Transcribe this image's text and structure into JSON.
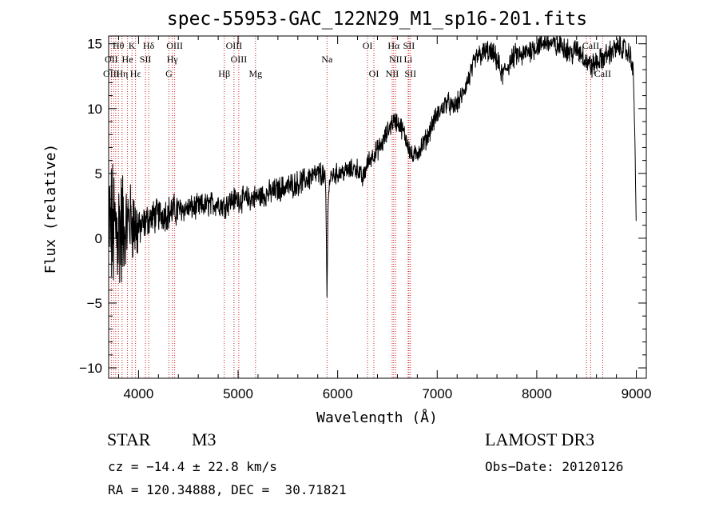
{
  "chart_data": {
    "type": "line",
    "title": "spec-55953-GAC_122N29_M1_sp16-201.fits",
    "xlabel": "Wavelength (Å)",
    "ylabel": "Flux (relative)",
    "xlim": [
      3700,
      9100
    ],
    "ylim": [
      -10.8,
      15.6
    ],
    "x_ticks": [
      4000,
      5000,
      6000,
      7000,
      8000,
      9000
    ],
    "y_ticks": [
      -10,
      -5,
      0,
      5,
      10,
      15
    ],
    "x_tick_labels": [
      "4000",
      "5000",
      "6000",
      "7000",
      "8000",
      "9000"
    ],
    "y_tick_labels": [
      "−10",
      "−5",
      "0",
      "5",
      "10",
      "15"
    ],
    "spectrum_anchor_points": {
      "name": "flux",
      "x": [
        3700,
        3750,
        3800,
        3850,
        3900,
        3950,
        4000,
        4100,
        4200,
        4300,
        4400,
        4500,
        4600,
        4700,
        4800,
        4860,
        4950,
        5050,
        5150,
        5250,
        5350,
        5450,
        5550,
        5650,
        5750,
        5850,
        5880,
        5893,
        5905,
        5930,
        6000,
        6100,
        6200,
        6250,
        6300,
        6350,
        6400,
        6450,
        6500,
        6550,
        6600,
        6650,
        6700,
        6750,
        6800,
        6850,
        6900,
        6950,
        7000,
        7050,
        7100,
        7150,
        7200,
        7250,
        7300,
        7350,
        7400,
        7450,
        7500,
        7550,
        7600,
        7650,
        7700,
        7750,
        7800,
        7850,
        7900,
        7950,
        8000,
        8050,
        8100,
        8150,
        8200,
        8250,
        8300,
        8350,
        8400,
        8450,
        8500,
        8550,
        8600,
        8650,
        8700,
        8750,
        8800,
        8850,
        8900,
        8950,
        8970,
        8985,
        9000
      ],
      "values": [
        1.0,
        0.5,
        0.8,
        0.3,
        1.5,
        1.2,
        0.6,
        1.5,
        1.8,
        2.0,
        2.2,
        2.3,
        2.4,
        2.6,
        2.7,
        2.5,
        3.0,
        3.0,
        3.1,
        3.3,
        3.6,
        3.9,
        4.1,
        4.4,
        4.8,
        5.0,
        4.0,
        -4.5,
        3.5,
        4.8,
        5.0,
        5.2,
        5.4,
        4.5,
        5.8,
        6.4,
        6.8,
        7.3,
        8.2,
        9.0,
        9.0,
        8.4,
        7.4,
        6.2,
        6.6,
        7.2,
        7.8,
        8.8,
        9.5,
        10.0,
        10.6,
        10.0,
        10.4,
        11.0,
        12.0,
        13.0,
        14.0,
        14.2,
        14.4,
        14.2,
        13.8,
        12.5,
        13.2,
        13.8,
        14.2,
        14.0,
        14.4,
        14.6,
        14.8,
        15.0,
        15.2,
        15.0,
        14.7,
        15.0,
        14.6,
        14.2,
        14.6,
        14.3,
        13.6,
        13.2,
        13.6,
        13.8,
        14.1,
        14.4,
        14.6,
        14.8,
        14.4,
        14.0,
        12.5,
        8.0,
        0.2
      ],
      "noise_note": "spectrum is noisy; jitter amplitude large below 4000 Å, moderate elsewhere"
    },
    "emission_lines": [
      {
        "label": "Hθ",
        "wl": 3798,
        "row": 0
      },
      {
        "label": "K",
        "wl": 3934,
        "row": 0
      },
      {
        "label": "Hδ",
        "wl": 4102,
        "row": 0
      },
      {
        "label": "OIII",
        "wl": 4363,
        "row": 0
      },
      {
        "label": "OIII",
        "wl": 4959,
        "row": 0
      },
      {
        "label": "OI",
        "wl": 6300,
        "row": 0
      },
      {
        "label": "Hα",
        "wl": 6563,
        "row": 0
      },
      {
        "label": "SII",
        "wl": 6716,
        "row": 0
      },
      {
        "label": "CaII",
        "wl": 8542,
        "row": 0
      },
      {
        "label": "OII",
        "wl": 3727,
        "row": 1
      },
      {
        "label": "He",
        "wl": 3889,
        "row": 1
      },
      {
        "label": "SII",
        "wl": 4070,
        "row": 1
      },
      {
        "label": "Hγ",
        "wl": 4340,
        "row": 1
      },
      {
        "label": "OIII",
        "wl": 5007,
        "row": 1
      },
      {
        "label": "Na",
        "wl": 5893,
        "row": 1
      },
      {
        "label": "NII",
        "wl": 6583,
        "row": 1
      },
      {
        "label": "Li",
        "wl": 6708,
        "row": 1
      },
      {
        "label": "CaII",
        "wl": 8498,
        "row": 1
      },
      {
        "label": "OIII",
        "wl": 3727,
        "row": 2
      },
      {
        "label": "Hε",
        "wl": 3970,
        "row": 2
      },
      {
        "label": "Hη",
        "wl": 3835,
        "row": 2
      },
      {
        "label": "G",
        "wl": 4305,
        "row": 2
      },
      {
        "label": "Hβ",
        "wl": 4861,
        "row": 2
      },
      {
        "label": "Mg",
        "wl": 5175,
        "row": 2
      },
      {
        "label": "OI",
        "wl": 6364,
        "row": 2
      },
      {
        "label": "NII",
        "wl": 6548,
        "row": 2
      },
      {
        "label": "SII",
        "wl": 6731,
        "row": 2
      },
      {
        "label": "CaII",
        "wl": 8662,
        "row": 2
      }
    ],
    "line_marker_wavelengths": [
      3727,
      3750,
      3771,
      3798,
      3835,
      3889,
      3934,
      3970,
      4070,
      4102,
      4305,
      4340,
      4363,
      4861,
      4959,
      5007,
      5175,
      5893,
      6300,
      6364,
      6548,
      6563,
      6583,
      6708,
      6716,
      6731,
      8498,
      8542,
      8662
    ]
  },
  "info": {
    "object_class": "STAR",
    "object_subclass": "M3",
    "survey": "LAMOST DR3",
    "cz_text": "cz = −14.4 ± 22.8 km/s",
    "obs_date_text": "Obs−Date: 20120126",
    "radec_text": "RA = 120.34888, DEC =  30.71821"
  },
  "colors": {
    "spectrum": "#000000",
    "line_markers": "#cc2222",
    "axes": "#000000"
  }
}
